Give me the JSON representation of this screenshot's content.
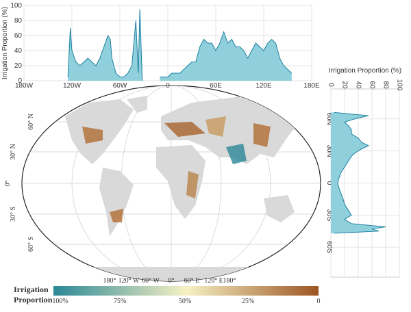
{
  "chart_data": [
    {
      "type": "area",
      "orientation": "vertical",
      "y_label": "Irrigation Proportion (%)",
      "color": "#1a7fa0",
      "fill": "#8fd0dc",
      "grid": true,
      "xlim": [
        -180,
        180
      ],
      "xticks": [
        {
          "value": -180,
          "label": "180W"
        },
        {
          "value": -120,
          "label": "120W"
        },
        {
          "value": -60,
          "label": "60W"
        },
        0,
        {
          "value": 60,
          "label": "60E"
        },
        {
          "value": 120,
          "label": "120E"
        },
        {
          "value": 180,
          "label": "180E"
        }
      ],
      "ylim": [
        0,
        100
      ],
      "yticks": [
        0,
        20,
        40,
        60,
        80,
        100
      ],
      "x": [
        -125,
        -122,
        -120,
        -115,
        -110,
        -105,
        -100,
        -95,
        -90,
        -85,
        -80,
        -75,
        -72,
        -70,
        -65,
        -60,
        -55,
        -50,
        -45,
        -40,
        -37,
        -35,
        -32,
        -20,
        -10,
        -5,
        0,
        5,
        10,
        15,
        20,
        25,
        30,
        35,
        40,
        45,
        50,
        55,
        60,
        65,
        70,
        75,
        80,
        85,
        90,
        95,
        100,
        105,
        110,
        115,
        120,
        125,
        130,
        135,
        140,
        145,
        150,
        155
      ],
      "series": [
        {
          "values": [
            5,
            70,
            40,
            25,
            20,
            25,
            30,
            25,
            20,
            30,
            45,
            60,
            55,
            30,
            10,
            5,
            5,
            10,
            20,
            80,
            10,
            95,
            0,
            null,
            5,
            5,
            5,
            10,
            10,
            10,
            15,
            20,
            25,
            25,
            45,
            55,
            50,
            50,
            40,
            50,
            65,
            50,
            55,
            45,
            45,
            40,
            30,
            40,
            50,
            45,
            40,
            50,
            55,
            50,
            30,
            20,
            15,
            10
          ]
        }
      ]
    },
    {
      "type": "area",
      "orientation": "horizontal",
      "x_label": "Irrigation Proportion (%)",
      "color": "#1a7fa0",
      "fill": "#8fd0dc",
      "grid": true,
      "xlim": [
        0,
        100
      ],
      "xticks": [
        0,
        20,
        40,
        60,
        80,
        100
      ],
      "ylim": [
        -88,
        88
      ],
      "yticks": [
        {
          "value": 60,
          "label": "60N"
        },
        {
          "value": 30,
          "label": "30N"
        },
        0,
        {
          "value": -30,
          "label": "30S"
        },
        {
          "value": -60,
          "label": "60S"
        }
      ],
      "y": [
        66,
        63,
        60,
        57,
        54,
        50,
        46,
        42,
        38,
        35,
        32,
        28,
        25,
        20,
        15,
        10,
        5,
        0,
        -5,
        -10,
        -15,
        -20,
        -25,
        -30,
        -34,
        -38,
        -41,
        -43,
        -45,
        -47
      ],
      "series": [
        {
          "values": [
            5,
            55,
            35,
            20,
            25,
            30,
            30,
            40,
            45,
            55,
            45,
            35,
            30,
            25,
            20,
            15,
            12,
            10,
            12,
            15,
            18,
            20,
            25,
            30,
            20,
            30,
            80,
            60,
            70,
            5
          ]
        }
      ]
    }
  ],
  "map": {
    "lon_labels": [
      "180°",
      "120° W",
      "60° W",
      "0°",
      "60° E",
      "120° E",
      "180°"
    ],
    "lat_labels": [
      "60° N",
      "30° N",
      "0°",
      "30° S",
      "60° S"
    ],
    "colorbar": {
      "title": [
        "Irrigation",
        "Proportion"
      ],
      "labels": [
        "100%",
        "75%",
        "50%",
        "25%",
        "0"
      ]
    }
  }
}
